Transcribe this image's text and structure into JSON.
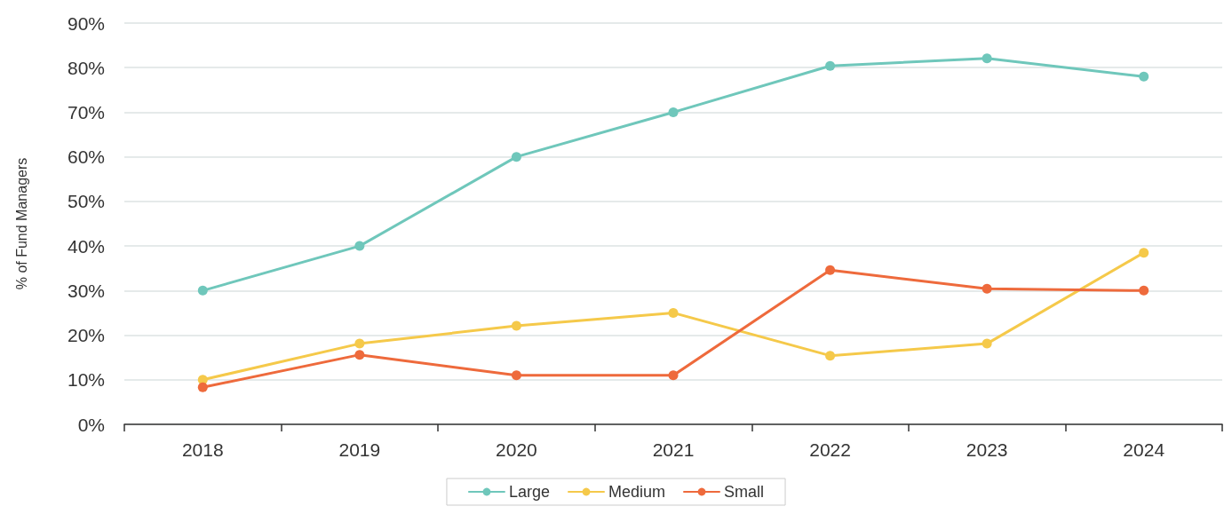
{
  "chart_data": {
    "type": "line",
    "ylabel": "% of Fund Managers",
    "categories": [
      "2018",
      "2019",
      "2020",
      "2021",
      "2022",
      "2023",
      "2024"
    ],
    "series": [
      {
        "name": "Large",
        "color": "#6fc7bb",
        "values": [
          30,
          40,
          60,
          70,
          80.4,
          82.1,
          78
        ]
      },
      {
        "name": "Medium",
        "color": "#f5c94a",
        "values": [
          10,
          18.1,
          22.1,
          25,
          15.4,
          18.1,
          38.5
        ]
      },
      {
        "name": "Small",
        "color": "#ee6a3c",
        "values": [
          8.3,
          15.6,
          11,
          11,
          34.6,
          30.4,
          30
        ]
      }
    ],
    "ylim": [
      0,
      90
    ],
    "yticks": [
      {
        "value": 0,
        "label": "0%"
      },
      {
        "value": 10,
        "label": "10%"
      },
      {
        "value": 20,
        "label": "20%"
      },
      {
        "value": 30,
        "label": "30%"
      },
      {
        "value": 40,
        "label": "40%"
      },
      {
        "value": 50,
        "label": "50%"
      },
      {
        "value": 60,
        "label": "60%"
      },
      {
        "value": 70,
        "label": "70%"
      },
      {
        "value": 80,
        "label": "80%"
      },
      {
        "value": 90,
        "label": "90%"
      }
    ],
    "grid": "y",
    "legend": "bottom",
    "marker": "circle",
    "line_style": "solid"
  }
}
